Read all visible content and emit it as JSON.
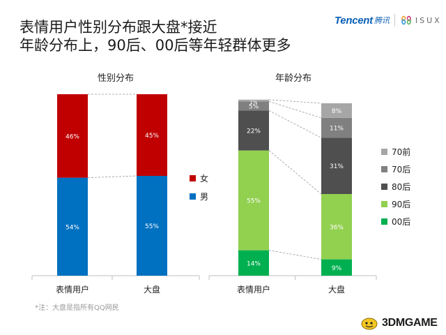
{
  "title": {
    "line1": "表情用户性别分布跟大盘*接近",
    "line2": "年龄分布上，90后、00后等年轻群体更多"
  },
  "logo": {
    "tencent": "Tencent",
    "tencent_cn": "腾讯",
    "isux": "ISUX"
  },
  "footnote": "*注：大盘是指所有QQ网民",
  "watermark": "3DMGAME",
  "colors": {
    "female": "#c00000",
    "male": "#0070c0",
    "age_70qian": "#a6a6a6",
    "age_70hou": "#808080",
    "age_80hou": "#4f4f4f",
    "age_90hou": "#92d050",
    "age_00hou": "#00b050"
  },
  "chart_data": [
    {
      "type": "bar",
      "stacked": true,
      "title": "性别分布",
      "categories": [
        "表情用户",
        "大盘"
      ],
      "series": [
        {
          "name": "男",
          "values": [
            54,
            55
          ],
          "labels": [
            "54%",
            "55%"
          ],
          "color": "#0070c0"
        },
        {
          "name": "女",
          "values": [
            46,
            45
          ],
          "labels": [
            "46%",
            "45%"
          ],
          "color": "#c00000"
        }
      ],
      "ylim": [
        0,
        100
      ],
      "legend": [
        "女",
        "男"
      ],
      "legend_position": "right"
    },
    {
      "type": "bar",
      "stacked": true,
      "title": "年龄分布",
      "categories": [
        "表情用户",
        "大盘"
      ],
      "series": [
        {
          "name": "00后",
          "values": [
            14,
            9
          ],
          "labels": [
            "14%",
            "9%"
          ],
          "color": "#00b050"
        },
        {
          "name": "90后",
          "values": [
            55,
            36
          ],
          "labels": [
            "55%",
            "36%"
          ],
          "color": "#92d050"
        },
        {
          "name": "80后",
          "values": [
            22,
            31
          ],
          "labels": [
            "22%",
            "31%"
          ],
          "color": "#4f4f4f"
        },
        {
          "name": "70后",
          "values": [
            5,
            11
          ],
          "labels": [
            "5%",
            "11%"
          ],
          "color": "#808080"
        },
        {
          "name": "70前",
          "values": [
            1,
            8
          ],
          "labels": [
            "1%",
            "8%"
          ],
          "color": "#a6a6a6"
        }
      ],
      "ylim": [
        0,
        100
      ],
      "legend": [
        "70前",
        "70后",
        "80后",
        "90后",
        "00后"
      ],
      "legend_position": "right"
    }
  ]
}
